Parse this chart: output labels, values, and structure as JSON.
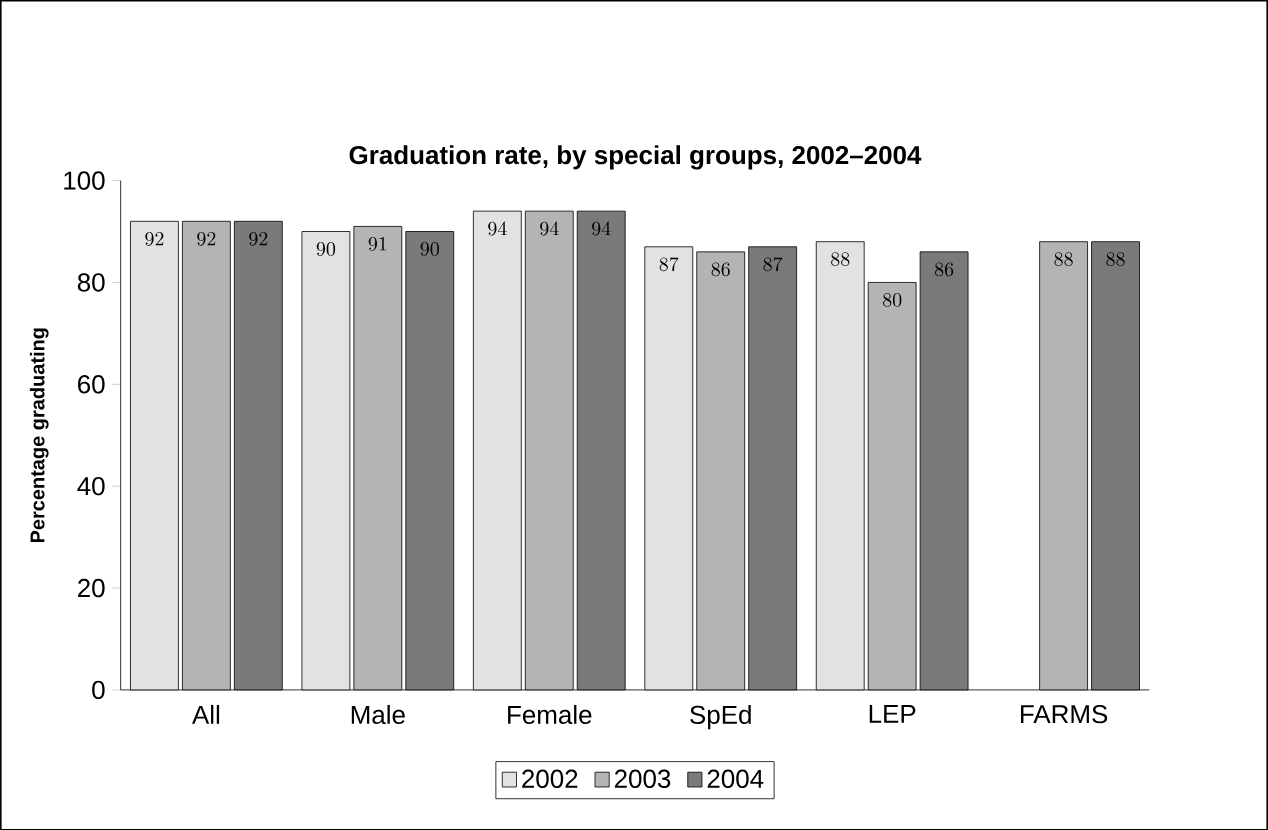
{
  "chart_data": {
    "type": "bar",
    "title": "Graduation rate, by special groups, 2002–2004",
    "ylabel": "Percentage graduating",
    "categories": [
      "All",
      "Male",
      "Female",
      "SpEd",
      "LEP",
      "FARMS"
    ],
    "series": [
      {
        "name": "2002",
        "color": "#e2e2e2",
        "values": [
          92,
          90,
          94,
          87,
          88,
          null
        ]
      },
      {
        "name": "2003",
        "color": "#b4b4b4",
        "values": [
          92,
          91,
          94,
          86,
          80,
          88
        ]
      },
      {
        "name": "2004",
        "color": "#7a7a7a",
        "values": [
          92,
          90,
          94,
          87,
          86,
          88
        ]
      }
    ],
    "ylim": [
      0,
      100
    ],
    "yticks": [
      0,
      20,
      40,
      60,
      80,
      100
    ],
    "grid": false,
    "legend": "bottom",
    "data_labels": true
  }
}
